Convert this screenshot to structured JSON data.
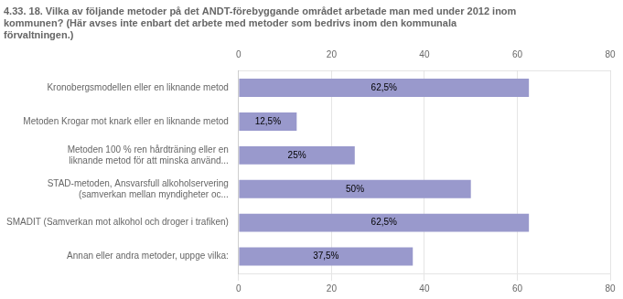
{
  "chart_data": {
    "type": "bar",
    "orientation": "horizontal",
    "title": "4.33. 18. Vilka av följande metoder på det ANDT-förebyggande området arbetade man med under 2012 inom\nkommunen? (Här avses inte enbart det arbete med metoder som bedrivs inom den kommunala\nförvaltningen.)",
    "categories": [
      "Kronobergsmodellen eller en liknande metod",
      "Metoden Krogar mot knark eller en liknande metod",
      "Metoden 100 % ren hårdträning eller en\nliknande metod för att minska använd...",
      "STAD-metoden, Ansvarsfull alkoholservering\n(samverkan mellan myndigheter oc...",
      "SMADIT (Samverkan mot alkohol och droger i trafiken)",
      "Annan eller andra metoder, uppge vilka:"
    ],
    "values": [
      62.5,
      12.5,
      25.0,
      50.0,
      62.5,
      37.5
    ],
    "value_labels": [
      "62,5%",
      "12,5%",
      "25%",
      "50%",
      "62,5%",
      "37,5%"
    ],
    "color": "#9999cc",
    "xlim": [
      0,
      80
    ],
    "xticks": [
      0,
      20,
      40,
      60,
      80
    ],
    "grid": true,
    "data_labels": true
  }
}
